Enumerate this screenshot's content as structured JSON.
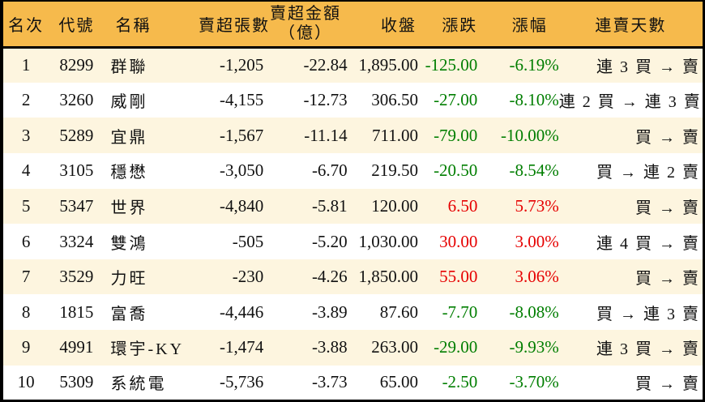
{
  "colors": {
    "header_bg": "#F6BA4C",
    "row_odd_bg": "#FDF5DF",
    "row_even_bg": "#FFFFFF",
    "up_red": "#E60000",
    "down_green": "#007E00",
    "text": "#111111",
    "border": "#000000"
  },
  "table": {
    "columns": [
      {
        "key": "rank",
        "label": "名次"
      },
      {
        "key": "code",
        "label": "代號"
      },
      {
        "key": "name",
        "label": "名稱"
      },
      {
        "key": "sell_volume",
        "label": "賣超張數"
      },
      {
        "key": "sell_amount",
        "label": "賣超金額",
        "label2": "（億）"
      },
      {
        "key": "close",
        "label": "收盤"
      },
      {
        "key": "change",
        "label": "漲跌"
      },
      {
        "key": "change_pct",
        "label": "漲幅"
      },
      {
        "key": "streak",
        "label": "連賣天數"
      }
    ],
    "rows": [
      {
        "rank": "1",
        "code": "8299",
        "name": "群聯",
        "sell_volume": "-1,205",
        "sell_amount": "-22.84",
        "close": "1,895.00",
        "change": "-125.00",
        "change_pct": "-6.19%",
        "streak": "連 3 買 → 賣"
      },
      {
        "rank": "2",
        "code": "3260",
        "name": "威剛",
        "sell_volume": "-4,155",
        "sell_amount": "-12.73",
        "close": "306.50",
        "change": "-27.00",
        "change_pct": "-8.10%",
        "streak": "連 2 買 → 連 3 賣"
      },
      {
        "rank": "3",
        "code": "5289",
        "name": "宜鼎",
        "sell_volume": "-1,567",
        "sell_amount": "-11.14",
        "close": "711.00",
        "change": "-79.00",
        "change_pct": "-10.00%",
        "streak": "買 → 賣"
      },
      {
        "rank": "4",
        "code": "3105",
        "name": "穩懋",
        "sell_volume": "-3,050",
        "sell_amount": "-6.70",
        "close": "219.50",
        "change": "-20.50",
        "change_pct": "-8.54%",
        "streak": "買 → 連 2 賣"
      },
      {
        "rank": "5",
        "code": "5347",
        "name": "世界",
        "sell_volume": "-4,840",
        "sell_amount": "-5.81",
        "close": "120.00",
        "change": "6.50",
        "change_pct": "5.73%",
        "streak": "買 → 賣"
      },
      {
        "rank": "6",
        "code": "3324",
        "name": "雙鴻",
        "sell_volume": "-505",
        "sell_amount": "-5.20",
        "close": "1,030.00",
        "change": "30.00",
        "change_pct": "3.00%",
        "streak": "連 4 買 → 賣"
      },
      {
        "rank": "7",
        "code": "3529",
        "name": "力旺",
        "sell_volume": "-230",
        "sell_amount": "-4.26",
        "close": "1,850.00",
        "change": "55.00",
        "change_pct": "3.06%",
        "streak": "買 → 賣"
      },
      {
        "rank": "8",
        "code": "1815",
        "name": "富喬",
        "sell_volume": "-4,446",
        "sell_amount": "-3.89",
        "close": "87.60",
        "change": "-7.70",
        "change_pct": "-8.08%",
        "streak": "買 → 連 3 賣"
      },
      {
        "rank": "9",
        "code": "4991",
        "name": "環宇-KY",
        "sell_volume": "-1,474",
        "sell_amount": "-3.88",
        "close": "263.00",
        "change": "-29.00",
        "change_pct": "-9.93%",
        "streak": "連 3 買 → 賣"
      },
      {
        "rank": "10",
        "code": "5309",
        "name": "系統電",
        "sell_volume": "-5,736",
        "sell_amount": "-3.73",
        "close": "65.00",
        "change": "-2.50",
        "change_pct": "-3.70%",
        "streak": "買 → 賣"
      }
    ]
  },
  "chart_data": {
    "type": "table",
    "title": "賣超排行 (Net Sell Ranking)",
    "columns": [
      "名次",
      "代號",
      "名稱",
      "賣超張數",
      "賣超金額（億）",
      "收盤",
      "漲跌",
      "漲幅",
      "連賣天數"
    ],
    "rows": [
      [
        1,
        "8299",
        "群聯",
        -1205,
        -22.84,
        1895.0,
        -125.0,
        "-6.19%",
        "連 3 買 → 賣"
      ],
      [
        2,
        "3260",
        "威剛",
        -4155,
        -12.73,
        306.5,
        -27.0,
        "-8.10%",
        "連 2 買 → 連 3 賣"
      ],
      [
        3,
        "5289",
        "宜鼎",
        -1567,
        -11.14,
        711.0,
        -79.0,
        "-10.00%",
        "買 → 賣"
      ],
      [
        4,
        "3105",
        "穩懋",
        -3050,
        -6.7,
        219.5,
        -20.5,
        "-8.54%",
        "買 → 連 2 賣"
      ],
      [
        5,
        "5347",
        "世界",
        -4840,
        -5.81,
        120.0,
        6.5,
        "5.73%",
        "買 → 賣"
      ],
      [
        6,
        "3324",
        "雙鴻",
        -505,
        -5.2,
        1030.0,
        30.0,
        "3.00%",
        "連 4 買 → 賣"
      ],
      [
        7,
        "3529",
        "力旺",
        -230,
        -4.26,
        1850.0,
        55.0,
        "3.06%",
        "買 → 賣"
      ],
      [
        8,
        "1815",
        "富喬",
        -4446,
        -3.89,
        87.6,
        -7.7,
        "-8.08%",
        "買 → 連 3 賣"
      ],
      [
        9,
        "4991",
        "環宇-KY",
        -1474,
        -3.88,
        263.0,
        -29.0,
        "-9.93%",
        "連 3 買 → 賣"
      ],
      [
        10,
        "5309",
        "系統電",
        -5736,
        -3.73,
        65.0,
        -2.5,
        "-3.70%",
        "買 → 賣"
      ]
    ],
    "color_coding": "negative change = green (#007E00), positive change = red (#E60000)"
  }
}
